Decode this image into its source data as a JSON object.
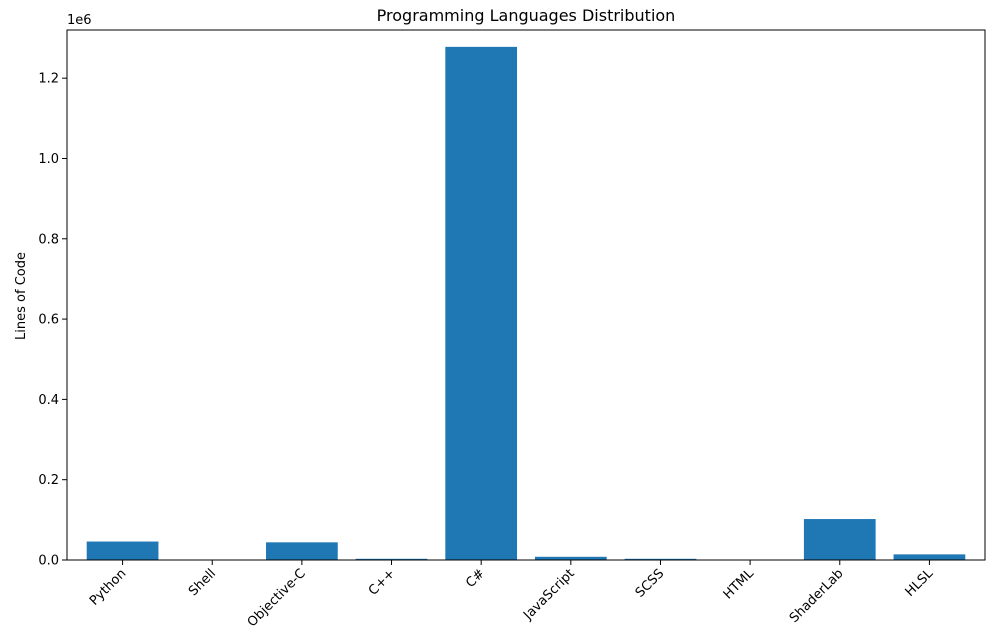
{
  "chart_data": {
    "type": "bar",
    "title": "Programming Languages Distribution",
    "xlabel": "",
    "ylabel": "Lines of Code",
    "offset_label": "1e6",
    "categories": [
      "Python",
      "Shell",
      "Objective-C",
      "C++",
      "C#",
      "JavaScript",
      "SCSS",
      "HTML",
      "ShaderLab",
      "HLSL"
    ],
    "values": [
      46000,
      500,
      44000,
      3000,
      1278000,
      8000,
      3000,
      1000,
      102000,
      14000
    ],
    "ylim": [
      0,
      1320000
    ],
    "yticks": [
      0,
      200000,
      400000,
      600000,
      800000,
      1000000,
      1200000
    ],
    "ytick_labels": [
      "0.0",
      "0.2",
      "0.4",
      "0.6",
      "0.8",
      "1.0",
      "1.2"
    ],
    "grid": false,
    "bar_color": "#1f77b4"
  }
}
